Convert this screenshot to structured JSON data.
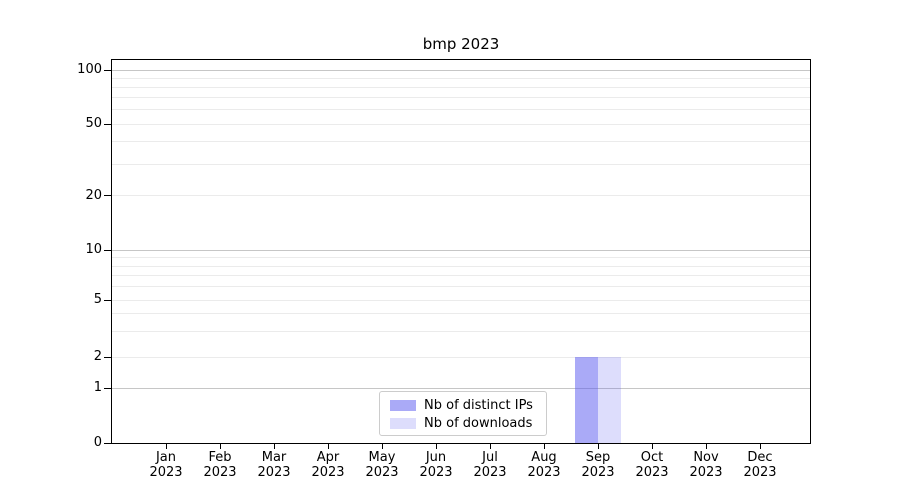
{
  "chart_data": {
    "type": "bar",
    "title": "bmp 2023",
    "categories": [
      "Jan",
      "Feb",
      "Mar",
      "Apr",
      "May",
      "Jun",
      "Jul",
      "Aug",
      "Sep",
      "Oct",
      "Nov",
      "Dec"
    ],
    "x_tick_second_line": "2023",
    "series": [
      {
        "name": "Nb of distinct IPs",
        "color": "rgba(85,85,240,0.5)",
        "color_hex_on_white": "#aaaaf7",
        "values": [
          0,
          0,
          0,
          0,
          0,
          0,
          0,
          0,
          2,
          0,
          0,
          0
        ]
      },
      {
        "name": "Nb of downloads",
        "color": "rgba(85,85,240,0.2)",
        "color_hex_on_white": "#ddddfc",
        "values": [
          0,
          0,
          0,
          0,
          0,
          0,
          0,
          0,
          2,
          0,
          0,
          0
        ]
      }
    ],
    "y_ticks": [
      0,
      1,
      2,
      5,
      10,
      20,
      50,
      100
    ],
    "ylim": [
      0,
      114
    ],
    "y_scale": "symlog",
    "grid": "horizontal, log minor gridlines on",
    "legend_position": "lower center",
    "colors": {
      "major_gridline": "#c6c6c6",
      "minor_gridline": "#ebebeb",
      "axis": "#000000"
    }
  }
}
